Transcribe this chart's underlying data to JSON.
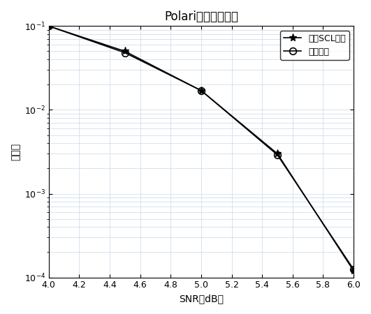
{
  "title": "Polari译码算法对比",
  "xlabel": "SNR（dB）",
  "ylabel": "误码率",
  "snr": [
    4.0,
    4.5,
    5.0,
    5.5,
    6.0
  ],
  "ber_scl": [
    0.1,
    0.05,
    0.017,
    0.003,
    0.00012
  ],
  "ber_proposed": [
    0.1,
    0.048,
    0.017,
    0.0029,
    0.000125
  ],
  "scl_label": "原始SCL算法",
  "proposed_label": "本文算法",
  "xlim": [
    4.0,
    6.0
  ],
  "ylim": [
    0.0001,
    0.1
  ],
  "line_color": "#000000",
  "bg_color": "#ffffff",
  "grid_color": "#c8d8e8",
  "marker_scl": "*",
  "marker_proposed": "o",
  "markersize_scl": 8,
  "markersize_proposed": 7,
  "linewidth": 1.2,
  "title_fontsize": 12,
  "label_fontsize": 10,
  "tick_fontsize": 9,
  "legend_fontsize": 9
}
